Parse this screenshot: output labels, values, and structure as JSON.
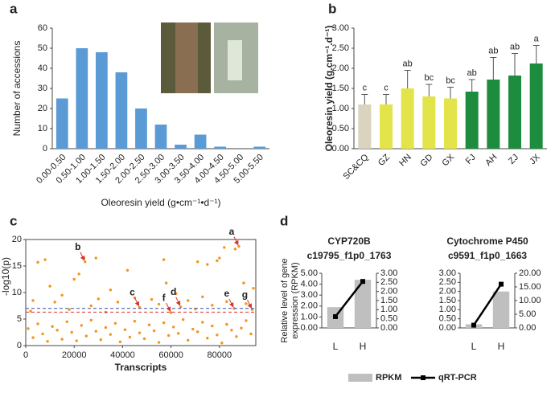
{
  "chart_data": [
    {
      "type": "bar",
      "panel": "a",
      "xlabel": "Oleoresin yield (g•cm⁻¹•d⁻¹)",
      "ylabel": "Number of accessions",
      "categories": [
        "0.00-0.50",
        "0.50-1.00",
        "1.00-1.50",
        "1.50-2.00",
        "2.00-2.50",
        "2.50-3.00",
        "3.00-3.50",
        "3.50-4.00",
        "4.00-4.50",
        "4.50-5.00",
        "5.00-5.50"
      ],
      "values": [
        25,
        50,
        48,
        38,
        20,
        12,
        2,
        7,
        1,
        0,
        1
      ],
      "color": "#5b9bd5",
      "ylim": [
        0,
        60
      ],
      "yticks": [
        0,
        10,
        20,
        30,
        40,
        50,
        60
      ]
    },
    {
      "type": "bar",
      "panel": "b",
      "ylabel": "Oleoresin yield (g.cm⁻¹.d⁻¹)",
      "categories": [
        "SC&CQ",
        "GZ",
        "HN",
        "GD",
        "GX",
        "FJ",
        "AH",
        "ZJ",
        "JX"
      ],
      "values": [
        1.1,
        1.1,
        1.5,
        1.3,
        1.25,
        1.42,
        1.72,
        1.82,
        2.12
      ],
      "errors": [
        0.25,
        0.25,
        0.45,
        0.3,
        0.28,
        0.3,
        0.55,
        0.55,
        0.45
      ],
      "letters": [
        "c",
        "c",
        "ab",
        "bc",
        "bc",
        "ab",
        "ab",
        "ab",
        "a"
      ],
      "colors": [
        "#d9d3bf",
        "#e3e34a",
        "#e3e34a",
        "#e3e34a",
        "#e3e34a",
        "#1e8c3e",
        "#1e8c3e",
        "#1e8c3e",
        "#1e8c3e"
      ],
      "ylim": [
        0,
        3
      ],
      "yticks": [
        {
          "value": 0,
          "label": "0.00"
        },
        {
          "value": 0.5,
          "label": "0.50"
        },
        {
          "value": 1,
          "label": "1.00"
        },
        {
          "value": 1.5,
          "label": "1.50"
        },
        {
          "value": 2,
          "label": "2.00"
        },
        {
          "value": 2.5,
          "label": "2.50"
        },
        {
          "value": 3,
          "label": "3.00"
        }
      ]
    },
    {
      "type": "scatter",
      "panel": "c",
      "xlabel": "Transcripts",
      "ylabel": "-log10(p)",
      "color": "#f0961e",
      "x": [
        88000,
        86500,
        82000,
        80000,
        79000,
        24000,
        24500,
        8000,
        5000,
        29000,
        57000,
        71000,
        75000,
        22000,
        20000,
        42000,
        58000,
        10000,
        35000,
        62000,
        90000,
        94000,
        15000,
        47000,
        64000,
        86000,
        60000,
        93500,
        3000,
        12000,
        30000,
        38000,
        52000,
        67000,
        73000,
        83000,
        45000,
        2000,
        18000,
        27000,
        33000,
        55000,
        70000,
        77000,
        91000,
        1000,
        3000,
        5000,
        7000,
        9000,
        11000,
        13000,
        15000,
        17000,
        19000,
        21000,
        23000,
        25000,
        27000,
        29000,
        31000,
        33000,
        35000,
        37000,
        39000,
        41000,
        43000,
        45000,
        47000,
        49000,
        51000,
        53000,
        55000,
        57000,
        59000,
        61000,
        63000,
        65000,
        67000,
        69000,
        71000,
        73000,
        75000,
        77000,
        79000,
        81000,
        83000,
        85000,
        87000,
        89000,
        91000,
        93000
      ],
      "y": [
        18.7,
        18.2,
        18.5,
        16.5,
        16,
        16.5,
        15.8,
        16.2,
        15.7,
        16.5,
        16.2,
        15.8,
        15.3,
        13.5,
        12.5,
        14.2,
        11.8,
        11.2,
        10.5,
        9.8,
        11.8,
        10.8,
        9.5,
        7.2,
        7.3,
        7,
        6.2,
        6.8,
        8.5,
        8.2,
        8.8,
        8.2,
        8.7,
        8.5,
        9.2,
        8.3,
        9,
        6.5,
        6.8,
        7.5,
        6.3,
        7.8,
        6.9,
        7.6,
        7.9,
        3.2,
        1.5,
        4.1,
        2.2,
        0.8,
        3.6,
        2.9,
        1.2,
        4.5,
        2.5,
        0.9,
        3.8,
        1.8,
        4.8,
        2.7,
        1.1,
        3.4,
        2.1,
        4.2,
        0.7,
        3,
        1.6,
        4.6,
        2.4,
        1.3,
        3.9,
        2.8,
        0.6,
        4.3,
        1.9,
        3.5,
        2.3,
        4.9,
        1,
        3.1,
        2.6,
        4.4,
        1.4,
        3.7,
        2,
        0.5,
        4,
        2.9,
        1.7,
        3.3,
        4.7,
        2.2
      ],
      "hlines": [
        {
          "y": 7,
          "color": "#3b4fa0"
        },
        {
          "y": 6.3,
          "color": "#d9342b"
        }
      ],
      "annotations": [
        {
          "text": "a",
          "x": 88000,
          "y": 18.7
        },
        {
          "text": "b",
          "x": 24500,
          "y": 15.8
        },
        {
          "text": "c",
          "x": 47000,
          "y": 7.2
        },
        {
          "text": "d",
          "x": 64000,
          "y": 7.3
        },
        {
          "text": "e",
          "x": 86000,
          "y": 7
        },
        {
          "text": "f",
          "x": 60000,
          "y": 6.2
        },
        {
          "text": "g",
          "x": 93500,
          "y": 6.8
        }
      ],
      "xlim": [
        0,
        95000
      ],
      "xticks": [
        0,
        20000,
        40000,
        60000,
        80000
      ],
      "ylim": [
        0,
        20
      ],
      "yticks": [
        0,
        5,
        10,
        15,
        20
      ]
    },
    {
      "type": "combo",
      "panel": "d",
      "title": "CYP720B",
      "subtitle": "c19795_f1p0_1763",
      "ylabel": [
        "Relative level of gene",
        "expression (RPKM)"
      ],
      "categories": [
        "L",
        "H"
      ],
      "series": [
        {
          "name": "RPKM",
          "type": "bar",
          "color": "#bfbfbf",
          "values": [
            1.9,
            4.4
          ]
        },
        {
          "name": "qRT-PCR",
          "type": "line",
          "color": "#000000",
          "axis": "y2",
          "values": [
            0.62,
            2.55
          ]
        }
      ],
      "ylim": [
        0,
        5
      ],
      "yticks": [
        {
          "value": 0,
          "label": "0.00"
        },
        {
          "value": 1,
          "label": "1.00"
        },
        {
          "value": 2,
          "label": "2.00"
        },
        {
          "value": 3,
          "label": "3.00"
        },
        {
          "value": 4,
          "label": "4.00"
        },
        {
          "value": 5,
          "label": "5.00"
        }
      ],
      "y2lim": [
        0,
        3
      ],
      "y2ticks": [
        {
          "value": 0,
          "label": "0.00"
        },
        {
          "value": 0.5,
          "label": "0.50"
        },
        {
          "value": 1,
          "label": "1.00"
        },
        {
          "value": 1.5,
          "label": "1.50"
        },
        {
          "value": 2,
          "label": "2.00"
        },
        {
          "value": 2.5,
          "label": "2.50"
        },
        {
          "value": 3,
          "label": "3.00"
        }
      ]
    },
    {
      "type": "combo",
      "title": "Cytochrome P450",
      "subtitle": "c9591_f1p0_1663",
      "categories": [
        "L",
        "H"
      ],
      "series": [
        {
          "type": "bar",
          "color": "#bfbfbf",
          "values": [
            0.2,
            2
          ]
        },
        {
          "type": "line",
          "color": "#000000",
          "axis": "y2",
          "values": [
            1,
            16
          ]
        }
      ],
      "ylim": [
        0,
        3
      ],
      "yticks": [
        {
          "value": 0,
          "label": "0.00"
        },
        {
          "value": 0.5,
          "label": "0.50"
        },
        {
          "value": 1,
          "label": "1.00"
        },
        {
          "value": 1.5,
          "label": "1.50"
        },
        {
          "value": 2,
          "label": "2.00"
        },
        {
          "value": 2.5,
          "label": "2.50"
        },
        {
          "value": 3,
          "label": "3.00"
        }
      ],
      "y2lim": [
        0,
        20
      ],
      "y2ticks": [
        {
          "value": 0,
          "label": "0.00"
        },
        {
          "value": 5,
          "label": "5.00"
        },
        {
          "value": 10,
          "label": "10.00"
        },
        {
          "value": 15,
          "label": "15.00"
        },
        {
          "value": 20,
          "label": "20.00"
        }
      ]
    }
  ]
}
